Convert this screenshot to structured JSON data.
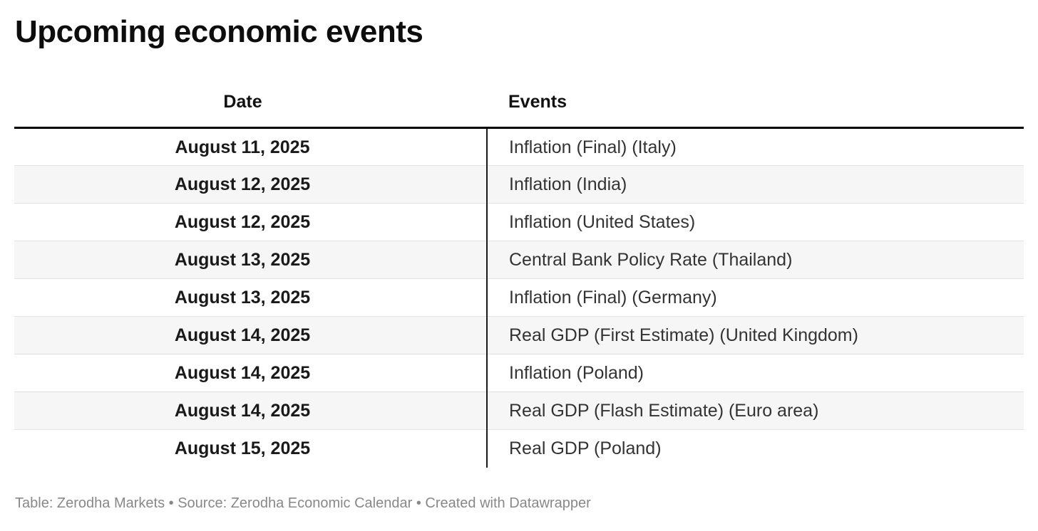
{
  "chart_data": {
    "type": "table",
    "title": "Upcoming economic events",
    "columns": [
      "Date",
      "Events"
    ],
    "rows": [
      [
        "August 11, 2025",
        "Inflation (Final) (Italy)"
      ],
      [
        "August 12, 2025",
        "Inflation (India)"
      ],
      [
        "August 12, 2025",
        "Inflation (United States)"
      ],
      [
        "August 13, 2025",
        "Central Bank Policy Rate (Thailand)"
      ],
      [
        "August 13, 2025",
        "Inflation (Final) (Germany)"
      ],
      [
        "August 14, 2025",
        "Real GDP (First Estimate) (United Kingdom)"
      ],
      [
        "August 14, 2025",
        "Inflation (Poland)"
      ],
      [
        "August 14, 2025",
        "Real GDP (Flash Estimate) (Euro area)"
      ],
      [
        "August 15, 2025",
        "Real GDP (Poland)"
      ]
    ],
    "footer": "Table: Zerodha Markets • Source: Zerodha Economic Calendar • Created with Datawrapper",
    "layout": {
      "date_column_align": "center",
      "events_column_align": "left",
      "alternating_rows": true,
      "legend_position": "none"
    }
  },
  "colors": {
    "row_alternate": "#f6f6f6",
    "row_separator": "#e2e2e2",
    "header_rule": "#000000",
    "column_divider": "#1a1a1a",
    "title_text": "#0d0d0d",
    "body_text": "#333333",
    "footer_text": "#888888"
  }
}
